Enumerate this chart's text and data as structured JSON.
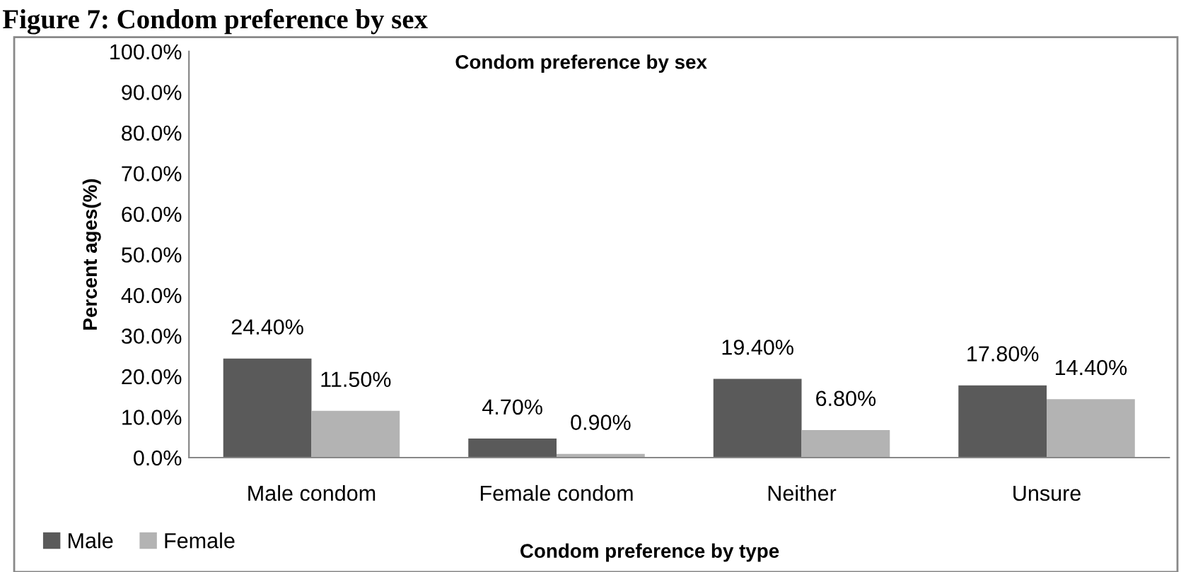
{
  "chart_data": {
    "type": "bar",
    "title": "Figure 7: Condom preference by sex",
    "subtitle": "Condom preference by sex",
    "xlabel": "Condom preference by type",
    "ylabel": "Percent ages(%)",
    "categories": [
      "Male condom",
      "Female condom",
      "Neither",
      "Unsure"
    ],
    "series": [
      {
        "name": "Male",
        "color": "#5a5a5a",
        "values": [
          24.4,
          4.7,
          19.4,
          17.8
        ],
        "value_labels": [
          "24.40%",
          "4.70%",
          "19.40%",
          "17.80%"
        ]
      },
      {
        "name": "Female",
        "color": "#b3b3b3",
        "values": [
          11.5,
          0.9,
          6.8,
          14.4
        ],
        "value_labels": [
          "11.50%",
          "0.90%",
          "6.80%",
          "14.40%"
        ]
      }
    ],
    "ylim": [
      0,
      100
    ],
    "yticks": [
      {
        "value": 0,
        "label": "0.0%"
      },
      {
        "value": 10,
        "label": "10.0%"
      },
      {
        "value": 20,
        "label": "20.0%"
      },
      {
        "value": 30,
        "label": "30.0%"
      },
      {
        "value": 40,
        "label": "40.0%"
      },
      {
        "value": 50,
        "label": "50.0%"
      },
      {
        "value": 60,
        "label": "60.0%"
      },
      {
        "value": 70,
        "label": "70.0%"
      },
      {
        "value": 80,
        "label": "80.0%"
      },
      {
        "value": 90,
        "label": "90.0%"
      },
      {
        "value": 100,
        "label": "100.0%"
      }
    ],
    "grid": false,
    "legend": "bottom left"
  }
}
